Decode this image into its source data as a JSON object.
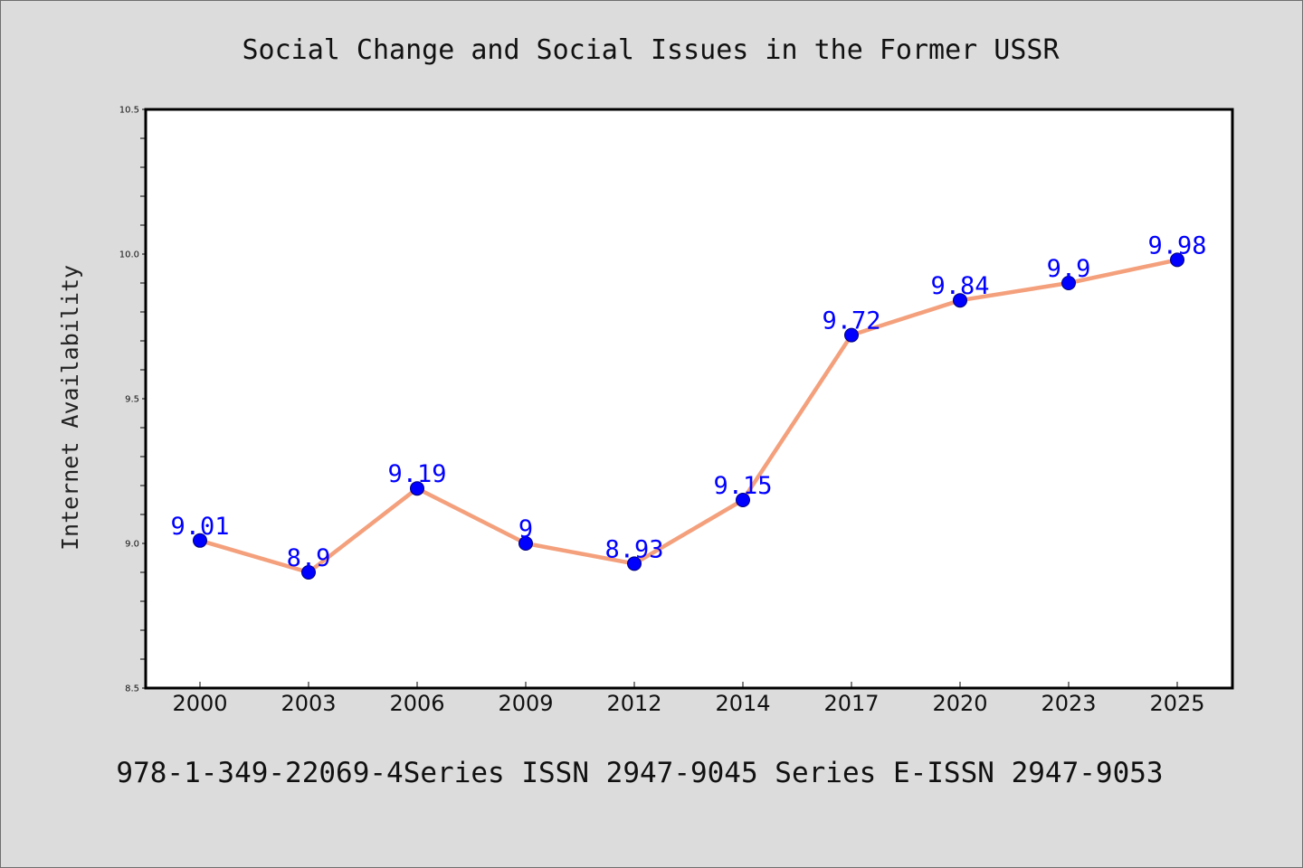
{
  "chart_data": {
    "type": "line",
    "title": "Social Change and Social Issues in the Former USSR",
    "xlabel": "",
    "ylabel": "Internet Availability",
    "categories": [
      "2000",
      "2003",
      "2006",
      "2009",
      "2012",
      "2014",
      "2017",
      "2020",
      "2023",
      "2025"
    ],
    "series": [
      {
        "values": [
          9.01,
          8.9,
          9.19,
          9,
          8.93,
          9.15,
          9.72,
          9.84,
          9.9,
          9.98
        ],
        "labels": [
          "9.01",
          "8.9",
          "9.19",
          "9",
          "8.93",
          "9.15",
          "9.72",
          "9.84",
          "9.9",
          "9.98"
        ]
      }
    ],
    "ylim": [
      8.5,
      10.5
    ],
    "yticks": [
      "8.5",
      "9.0",
      "9.5",
      "10.0",
      "10.5"
    ],
    "grid": false,
    "line_color": "#f4a07c",
    "marker_color": "#0000ff",
    "label_color": "#0000ff",
    "background_color": "#dcdcdc",
    "plot_background": "#ffffff"
  },
  "footer": {
    "text": "978-1-349-22069-4Series ISSN 2947-9045 Series E-ISSN 2947-9053"
  }
}
